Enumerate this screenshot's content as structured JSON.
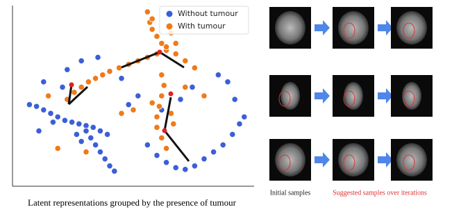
{
  "chart_data": {
    "type": "scatter",
    "legend": "upper right",
    "xlim": [
      0,
      100
    ],
    "ylim": [
      0,
      100
    ],
    "series": [
      {
        "name": "Without tumour",
        "color": "#3b5fd9",
        "x": [
          6,
          9,
          12,
          15,
          18,
          21,
          24,
          27,
          30,
          33,
          36,
          39,
          30,
          32,
          34,
          36,
          38,
          40,
          42,
          26,
          28,
          56,
          60,
          64,
          68,
          72,
          76,
          80,
          84,
          88,
          92,
          95,
          97,
          93,
          90,
          86,
          22,
          28,
          35,
          20,
          12,
          45,
          52,
          48,
          62,
          70,
          75,
          16,
          10
        ],
        "y": [
          45,
          44,
          42,
          40,
          38,
          36,
          35,
          34,
          33,
          32,
          30,
          28,
          30,
          26,
          22,
          18,
          14,
          10,
          7,
          28,
          24,
          22,
          16,
          12,
          9,
          8,
          10,
          14,
          18,
          22,
          28,
          34,
          38,
          48,
          58,
          62,
          65,
          70,
          72,
          55,
          58,
          60,
          50,
          45,
          42,
          48,
          55,
          35,
          30
        ]
      },
      {
        "name": "With tumour",
        "color": "#f07a1a",
        "x": [
          22,
          25,
          28,
          31,
          34,
          37,
          40,
          44,
          48,
          52,
          56,
          60,
          64,
          68,
          72,
          76,
          56,
          57,
          58,
          60,
          62,
          64,
          58,
          66,
          68,
          62,
          63,
          62,
          61,
          60,
          60,
          62,
          64,
          66,
          67,
          58,
          18,
          30,
          45,
          50,
          72,
          80,
          14
        ],
        "y": [
          48,
          52,
          55,
          58,
          60,
          62,
          64,
          66,
          68,
          70,
          72,
          74,
          76,
          74,
          70,
          66,
          98,
          92,
          88,
          84,
          80,
          78,
          94,
          86,
          80,
          62,
          56,
          50,
          44,
          38,
          32,
          26,
          20,
          40,
          34,
          46,
          20,
          18,
          40,
          42,
          55,
          50,
          50
        ]
      }
    ]
  },
  "caption": "Latent representations grouped by the presence of tumour",
  "image_grid": {
    "initial_label": "Initial samples",
    "suggested_label": "Suggested samples over iterations"
  }
}
